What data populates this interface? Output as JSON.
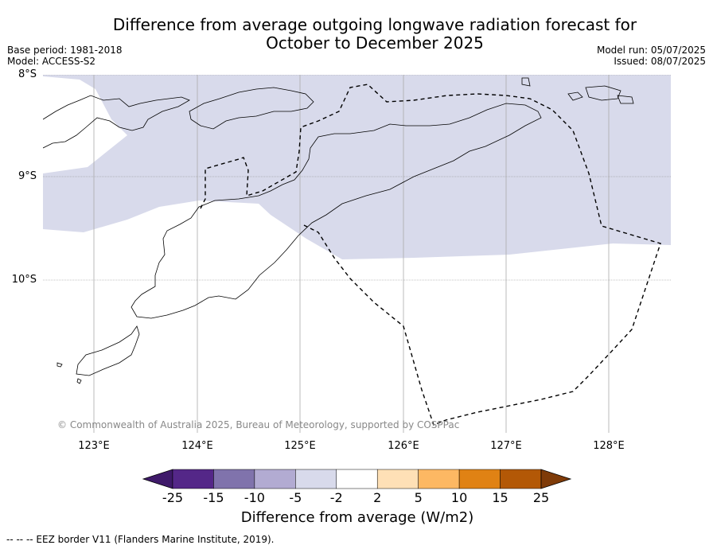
{
  "title_line1": "Difference from average outgoing longwave radiation forecast for",
  "title_line2": "October to December 2025",
  "meta_left": {
    "base_period": "Base period: 1981-2018",
    "model": "Model: ACCESS-S2"
  },
  "meta_right": {
    "model_run": "Model run: 05/07/2025",
    "issued": "Issued: 08/07/2025"
  },
  "lat_labels": [
    "8°S",
    "9°S",
    "10°S"
  ],
  "lon_labels": [
    "123°E",
    "124°E",
    "125°E",
    "126°E",
    "127°E",
    "128°E"
  ],
  "copyright": "© Commonwealth of Australia 2025, Bureau of Meteorology, supported by COSPPac",
  "colorbar": {
    "ticks": [
      "-25",
      "-15",
      "-10",
      "-5",
      "-2",
      "2",
      "5",
      "10",
      "15",
      "25"
    ],
    "colors": [
      "#3f1a6a",
      "#542788",
      "#8073ac",
      "#b2abd2",
      "#d8daeb",
      "#ffffff",
      "#fee0b6",
      "#fdb863",
      "#e08214",
      "#b35806",
      "#7f3b08"
    ],
    "label": "Difference from average (W/m2)"
  },
  "shading": {
    "color": "#d8daeb",
    "category": "-5 to -2"
  },
  "footnote": "--  --  -- EEZ border V11 (Flanders Marine Institute, 2019)."
}
